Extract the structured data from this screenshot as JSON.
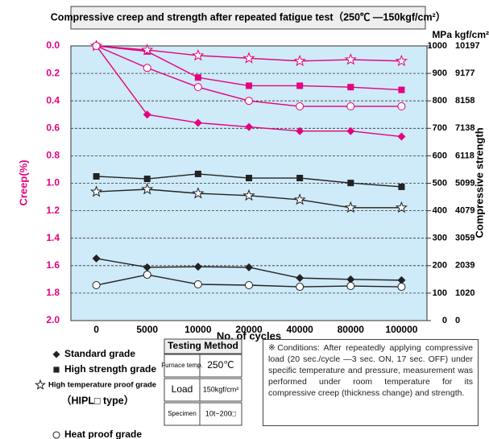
{
  "chart_data": {
    "type": "line",
    "title": "Compressive creep and strength after repeated fatigue test（250℃ —150kgf/cm²）",
    "x_label": "No. of cycles",
    "y_label": "Creep(%)",
    "y2_label": "Compressive strength",
    "y2_units": "MPa kgf/cm²",
    "categories": [
      "0",
      "5000",
      "10000",
      "20000",
      "40000",
      "80000",
      "100000"
    ],
    "ylim": [
      0,
      2
    ],
    "y_inverted": true,
    "yticks": [
      {
        "value": 0,
        "label": "0.0"
      },
      0.2,
      0.4,
      0.6,
      0.8,
      {
        "value": 1,
        "label": "1.0"
      },
      1.2,
      1.4,
      1.6,
      1.8,
      {
        "value": 2,
        "label": "2.0"
      }
    ],
    "y2lim": [
      0,
      1000
    ],
    "y2ticks": [
      0,
      100,
      200,
      300,
      400,
      500,
      600,
      700,
      800,
      900,
      1000
    ],
    "y2ticks_kgf": [
      0,
      1020,
      2039,
      3059,
      4079,
      5099,
      6118,
      7138,
      8158,
      9177,
      10197
    ],
    "grid": true,
    "series": [
      {
        "name": "Standard grade",
        "marker": "diamond",
        "color": "#e4007f",
        "values": [
          0,
          0.5,
          0.56,
          0.59,
          0.62,
          0.62,
          0.66
        ]
      },
      {
        "name": "High strength grade",
        "marker": "square",
        "color": "#e4007f",
        "values": [
          0,
          0.04,
          0.23,
          0.29,
          0.29,
          0.3,
          0.32
        ]
      },
      {
        "name": "High temperature proof grade",
        "marker": "star",
        "color": "#e4007f",
        "values": [
          0,
          0.03,
          0.07,
          0.09,
          0.11,
          0.1,
          0.11
        ]
      },
      {
        "name": "Heat proof grade",
        "marker": "circle",
        "color": "#e4007f",
        "values": [
          0,
          0.16,
          0.3,
          0.4,
          0.44,
          0.44,
          0.44
        ]
      },
      {
        "name": "Standard grade",
        "marker": "diamond",
        "color": "#222222",
        "axis": "y2",
        "values": [
          226,
          194,
          196,
          194,
          155,
          150,
          147
        ]
      },
      {
        "name": "High strength grade",
        "marker": "square",
        "color": "#222222",
        "axis": "y2",
        "values": [
          525,
          516,
          534,
          519,
          519,
          501,
          487
        ]
      },
      {
        "name": "High temperature proof grade",
        "marker": "star",
        "color": "#222222",
        "axis": "y2",
        "values": [
          469,
          478,
          463,
          455,
          440,
          411,
          411
        ]
      },
      {
        "name": "Heat proof grade",
        "marker": "circle",
        "color": "#222222",
        "axis": "y2",
        "values": [
          129,
          167,
          132,
          129,
          123,
          126,
          123
        ]
      }
    ],
    "legend_note": "（HIPL□ type）",
    "testing_method": {
      "title": "Testing Method",
      "rows": [
        [
          "Furnace temp.",
          "250℃"
        ],
        [
          "Load",
          "150kgf/cm²"
        ],
        [
          "Specimen",
          "10t−200□"
        ]
      ]
    },
    "conditions": "※Conditions: After repeatedly applying compressive load (20 sec./cycle —3 sec. ON, 17 sec. OFF) under specific temperature and pressure, measurement was performed under room temperature for its compressive creep (thickness change) and strength."
  }
}
